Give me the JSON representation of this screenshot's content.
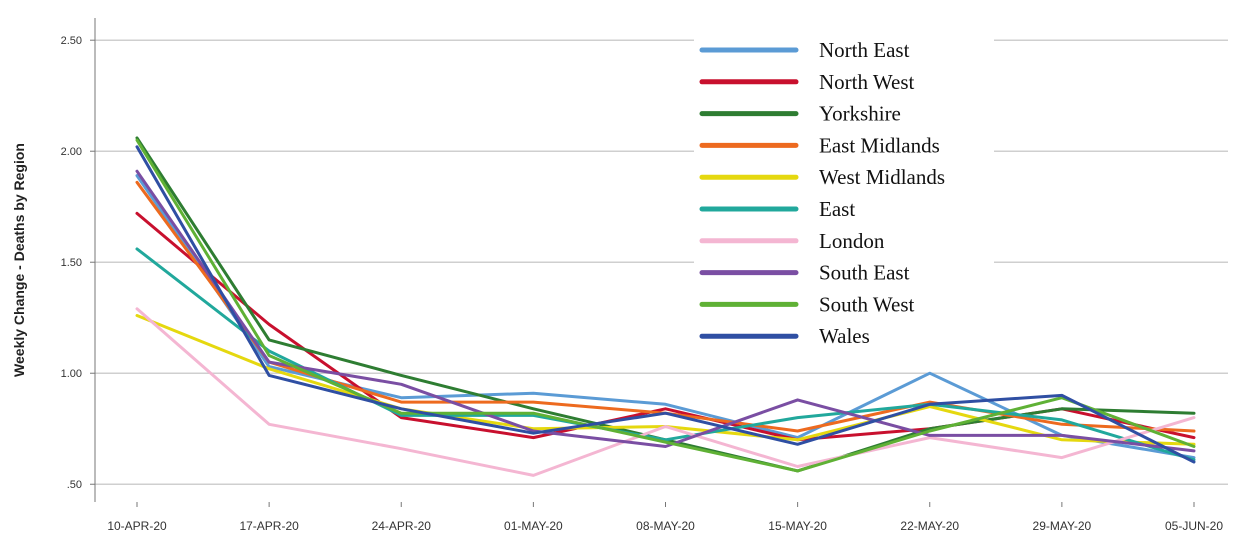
{
  "chart_data": {
    "type": "line",
    "title": "",
    "xlabel": "",
    "ylabel": "Weekly Change - Deaths by Region",
    "categories": [
      "10-APR-20",
      "17-APR-20",
      "24-APR-20",
      "01-MAY-20",
      "08-MAY-20",
      "15-MAY-20",
      "22-MAY-20",
      "29-MAY-20",
      "05-JUN-20"
    ],
    "y_ticks": [
      0.5,
      1.0,
      1.5,
      2.0,
      2.5
    ],
    "y_tick_labels": [
      ".50",
      "1.00",
      "1.50",
      "2.00",
      "2.50"
    ],
    "ylim": [
      0.42,
      2.6
    ],
    "grid": "horizontal",
    "legend_position": "top-right",
    "series": [
      {
        "name": "North East",
        "color": "#5b9bd5",
        "values": [
          1.89,
          1.03,
          0.89,
          0.91,
          0.86,
          0.71,
          1.0,
          0.72,
          0.62
        ]
      },
      {
        "name": "North West",
        "color": "#c8102e",
        "values": [
          1.72,
          1.22,
          0.8,
          0.71,
          0.84,
          0.7,
          0.75,
          0.84,
          0.71
        ]
      },
      {
        "name": "Yorkshire",
        "color": "#2e7d32",
        "values": [
          2.06,
          1.15,
          0.99,
          0.84,
          0.7,
          0.56,
          0.75,
          0.84,
          0.82
        ]
      },
      {
        "name": "East Midlands",
        "color": "#ed6a1f",
        "values": [
          1.86,
          1.05,
          0.87,
          0.87,
          0.82,
          0.74,
          0.87,
          0.77,
          0.74
        ]
      },
      {
        "name": "West Midlands",
        "color": "#e5d80f",
        "values": [
          1.26,
          1.02,
          0.84,
          0.75,
          0.76,
          0.7,
          0.85,
          0.7,
          0.68
        ]
      },
      {
        "name": "East",
        "color": "#21a89c",
        "values": [
          1.56,
          1.1,
          0.81,
          0.81,
          0.7,
          0.8,
          0.86,
          0.79,
          0.61
        ]
      },
      {
        "name": "London",
        "color": "#f4b6d2",
        "values": [
          1.29,
          0.77,
          0.66,
          0.54,
          0.76,
          0.58,
          0.71,
          0.62,
          0.8
        ]
      },
      {
        "name": "South East",
        "color": "#7a4ea3",
        "values": [
          1.91,
          1.05,
          0.95,
          0.74,
          0.67,
          0.88,
          0.72,
          0.72,
          0.65
        ]
      },
      {
        "name": "South West",
        "color": "#5fb135",
        "values": [
          2.05,
          1.08,
          0.82,
          0.82,
          0.69,
          0.56,
          0.74,
          0.89,
          0.67
        ]
      },
      {
        "name": "Wales",
        "color": "#2f4fa3",
        "values": [
          2.02,
          0.99,
          0.84,
          0.73,
          0.82,
          0.68,
          0.86,
          0.9,
          0.6
        ]
      }
    ]
  }
}
